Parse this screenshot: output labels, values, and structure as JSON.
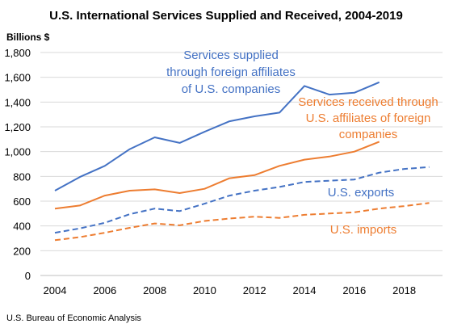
{
  "chart_data": {
    "type": "line",
    "title": "U.S. International Services Supplied and Received, 2004-2019",
    "ylabel": "Billions $",
    "source": "U.S. Bureau of Economic Analysis",
    "ylim": [
      0,
      1800
    ],
    "xlim": [
      2004,
      2019
    ],
    "yticks": [
      "0",
      "200",
      "400",
      "600",
      "800",
      "1,000",
      "1,200",
      "1,400",
      "1,600",
      "1,800"
    ],
    "xticks": [
      "2004",
      "2006",
      "2008",
      "2010",
      "2012",
      "2014",
      "2016",
      "2018"
    ],
    "grid": true,
    "legend": "none (inline labels)",
    "series": [
      {
        "id": "supplied",
        "label_lines": [
          "Services supplied",
          "through foreign affiliates",
          "of U.S. companies"
        ],
        "color": "#4472C4",
        "dashed": false,
        "x": [
          2004,
          2005,
          2006,
          2007,
          2008,
          2009,
          2010,
          2011,
          2012,
          2013,
          2014,
          2015,
          2016,
          2017
        ],
        "values": [
          685,
          795,
          885,
          1020,
          1115,
          1070,
          1160,
          1245,
          1285,
          1315,
          1530,
          1460,
          1475,
          1560
        ]
      },
      {
        "id": "received",
        "label_lines": [
          "Services received through",
          "U.S. affiliates of foreign",
          "companies"
        ],
        "color": "#ED7D31",
        "dashed": false,
        "x": [
          2004,
          2005,
          2006,
          2007,
          2008,
          2009,
          2010,
          2011,
          2012,
          2013,
          2014,
          2015,
          2016,
          2017
        ],
        "values": [
          540,
          565,
          645,
          685,
          695,
          665,
          700,
          785,
          810,
          885,
          935,
          960,
          1000,
          1080
        ]
      },
      {
        "id": "exports",
        "label_lines": [
          "U.S. exports"
        ],
        "color": "#4472C4",
        "dashed": true,
        "x": [
          2004,
          2005,
          2006,
          2007,
          2008,
          2009,
          2010,
          2011,
          2012,
          2013,
          2014,
          2015,
          2016,
          2017,
          2018,
          2019
        ],
        "values": [
          345,
          380,
          425,
          495,
          540,
          520,
          580,
          645,
          685,
          715,
          755,
          765,
          775,
          830,
          860,
          875
        ]
      },
      {
        "id": "imports",
        "label_lines": [
          "U.S. imports"
        ],
        "color": "#ED7D31",
        "dashed": true,
        "x": [
          2004,
          2005,
          2006,
          2007,
          2008,
          2009,
          2010,
          2011,
          2012,
          2013,
          2014,
          2015,
          2016,
          2017,
          2018,
          2019
        ],
        "values": [
          285,
          310,
          345,
          385,
          420,
          405,
          440,
          460,
          475,
          465,
          490,
          500,
          510,
          540,
          560,
          585
        ]
      }
    ]
  }
}
